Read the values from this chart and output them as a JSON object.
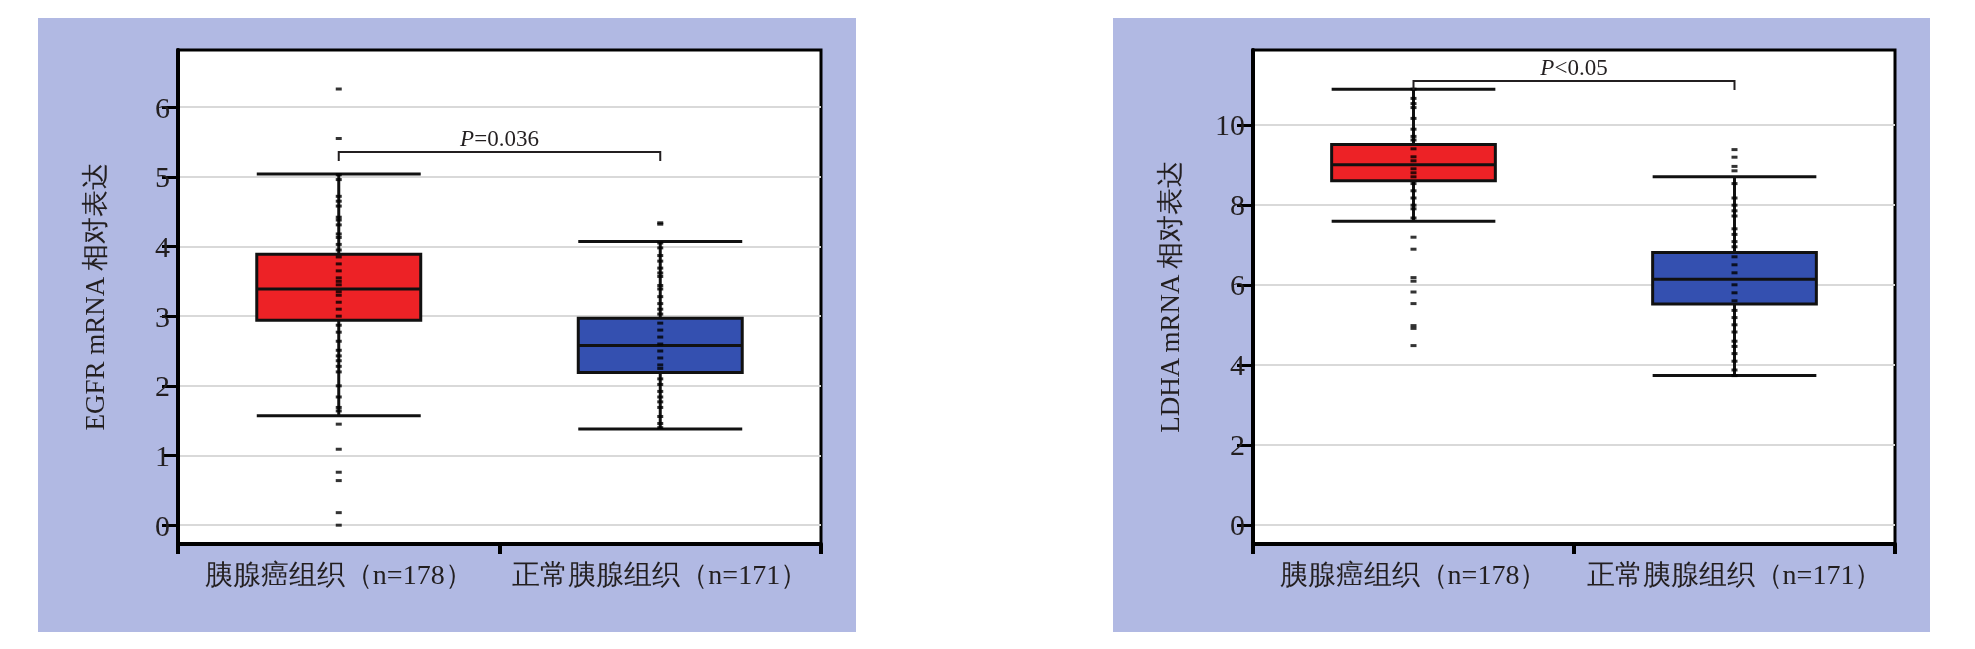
{
  "chart_data": [
    {
      "type": "box",
      "ylabel": "EGFR mRNA 相对表达",
      "categories": [
        "胰腺癌组织（n=178）",
        "正常胰腺组织（n=171）"
      ],
      "ylim": [
        -0.27,
        6.82
      ],
      "yticks": [
        0,
        1,
        2,
        3,
        4,
        5,
        6
      ],
      "grid": "y",
      "annotations": [
        "P=0.036"
      ],
      "series": [
        {
          "type": "box",
          "colors": [
            "#ed2226",
            "#3450b0"
          ],
          "boxes": [
            {
              "low": 1.57,
              "q1": 2.94,
              "median": 3.39,
              "q3": 3.89,
              "high": 5.04
            },
            {
              "low": 1.38,
              "q1": 2.19,
              "median": 2.58,
              "q3": 2.97,
              "high": 4.07
            }
          ]
        },
        {
          "type": "scatter",
          "color": "#000000",
          "marker": "square",
          "x": [
            "胰腺癌组织（n=178）",
            "胰腺癌组织（n=178）",
            "胰腺癌组织（n=178）",
            "胰腺癌组织（n=178）",
            "胰腺癌组织（n=178）",
            "胰腺癌组织（n=178）",
            "胰腺癌组织（n=178）",
            "胰腺癌组织（n=178）",
            "胰腺癌组织（n=178）",
            "胰腺癌组织（n=178）",
            "胰腺癌组织（n=178）",
            "胰腺癌组织（n=178）",
            "胰腺癌组织（n=178）",
            "胰腺癌组织（n=178）",
            "胰腺癌组织（n=178）",
            "胰腺癌组织（n=178）",
            "胰腺癌组织（n=178）",
            "胰腺癌组织（n=178）",
            "胰腺癌组织（n=178）",
            "胰腺癌组织（n=178）",
            "胰腺癌组织（n=178）",
            "胰腺癌组织（n=178）",
            "胰腺癌组织（n=178）",
            "胰腺癌组织（n=178）",
            "胰腺癌组织（n=178）",
            "胰腺癌组织（n=178）",
            "胰腺癌组织（n=178）",
            "胰腺癌组织（n=178）",
            "胰腺癌组织（n=178）",
            "胰腺癌组织（n=178）",
            "胰腺癌组织（n=178）",
            "胰腺癌组织（n=178）",
            "胰腺癌组织（n=178）",
            "胰腺癌组织（n=178）",
            "胰腺癌组织（n=178）",
            "胰腺癌组织（n=178）",
            "胰腺癌组织（n=178）",
            "胰腺癌组织（n=178）",
            "胰腺癌组织（n=178）",
            "胰腺癌组织（n=178）",
            "胰腺癌组织（n=178）",
            "胰腺癌组织（n=178）",
            "胰腺癌组织（n=178）"
          ],
          "values": [
            6.26,
            5.55,
            5.03,
            4.96,
            4.72,
            4.65,
            4.58,
            4.42,
            4.38,
            4.31,
            4.18,
            4.13,
            4.03,
            3.95,
            3.85,
            3.75,
            3.65,
            3.55,
            3.5,
            3.45,
            3.35,
            3.3,
            3.2,
            3.1,
            3.0,
            2.87,
            2.77,
            2.64,
            2.51,
            2.43,
            2.36,
            2.28,
            2.2,
            2.0,
            1.84,
            1.69,
            1.64,
            1.45,
            1.09,
            0.76,
            0.64,
            0.18,
            0
          ]
        },
        {
          "type": "scatter",
          "color": "#000000",
          "marker": "square",
          "x": [
            "正常胰腺组织（n=171）",
            "正常胰腺组织（n=171）",
            "正常胰腺组织（n=171）",
            "正常胰腺组织（n=171）",
            "正常胰腺组织（n=171）",
            "正常胰腺组织（n=171）",
            "正常胰腺组织（n=171）",
            "正常胰腺组织（n=171）",
            "正常胰腺组织（n=171）",
            "正常胰腺组织（n=171）",
            "正常胰腺组织（n=171）",
            "正常胰腺组织（n=171）",
            "正常胰腺组织（n=171）",
            "正常胰腺组织（n=171）",
            "正常胰腺组织（n=171）",
            "正常胰腺组织（n=171）",
            "正常胰腺组织（n=171）",
            "正常胰腺组织（n=171）",
            "正常胰腺组织（n=171）",
            "正常胰腺组织（n=171）",
            "正常胰腺组织（n=171）",
            "正常胰腺组织（n=171）",
            "正常胰腺组织（n=171）",
            "正常胰腺组织（n=171）",
            "正常胰腺组织（n=171）",
            "正常胰腺组织（n=171）",
            "正常胰腺组织（n=171）",
            "正常胰腺组织（n=171）",
            "正常胰腺组织（n=171）",
            "正常胰腺组织（n=171）",
            "正常胰腺组织（n=171）",
            "正常胰腺组织（n=171）"
          ],
          "values": [
            4.34,
            4.32,
            4.05,
            3.98,
            3.87,
            3.79,
            3.69,
            3.62,
            3.57,
            3.44,
            3.39,
            3.28,
            3.18,
            3.1,
            3.03,
            2.9,
            2.8,
            2.7,
            2.6,
            2.5,
            2.4,
            2.3,
            2.25,
            2.1,
            2.02,
            1.92,
            1.84,
            1.77,
            1.69,
            1.56,
            1.46,
            1.4
          ]
        }
      ]
    },
    {
      "type": "box",
      "ylabel": "LDHA mRNA 相对表达",
      "categories": [
        "胰腺癌组织（n=178）",
        "正常胰腺组织（n=171）"
      ],
      "ylim": [
        -0.48,
        11.87
      ],
      "yticks": [
        0,
        2,
        4,
        6,
        8,
        10
      ],
      "grid": "y",
      "annotations": [
        "P<0.05"
      ],
      "series": [
        {
          "type": "box",
          "colors": [
            "#ed2226",
            "#3450b0"
          ],
          "boxes": [
            {
              "low": 7.59,
              "q1": 8.6,
              "median": 9.0,
              "q3": 9.51,
              "high": 10.89
            },
            {
              "low": 3.73,
              "q1": 5.52,
              "median": 6.14,
              "q3": 6.81,
              "high": 8.7
            }
          ]
        },
        {
          "type": "scatter",
          "color": "#000000",
          "marker": "square",
          "x": [
            "胰腺癌组织（n=178）",
            "胰腺癌组织（n=178）",
            "胰腺癌组织（n=178）",
            "胰腺癌组织（n=178）",
            "胰腺癌组织（n=178）",
            "胰腺癌组织（n=178）",
            "胰腺癌组织（n=178）",
            "胰腺癌组织（n=178）",
            "胰腺癌组织（n=178）",
            "胰腺癌组织（n=178）",
            "胰腺癌组织（n=178）",
            "胰腺癌组织（n=178）",
            "胰腺癌组织（n=178）",
            "胰腺癌组织（n=178）",
            "胰腺癌组织（n=178）",
            "胰腺癌组织（n=178）",
            "胰腺癌组织（n=178）",
            "胰腺癌组织（n=178）",
            "胰腺癌组织（n=178）",
            "胰腺癌组织（n=178）",
            "胰腺癌组织（n=178）",
            "胰腺癌组织（n=178）",
            "胰腺癌组织（n=178）",
            "胰腺癌组织（n=178）",
            "胰腺癌组织（n=178）",
            "胰腺癌组织（n=178）",
            "胰腺癌组织（n=178）",
            "胰腺癌组织（n=178）",
            "胰腺癌组织（n=178）"
          ],
          "values": [
            10.89,
            10.66,
            10.53,
            10.43,
            10.16,
            9.89,
            9.71,
            9.62,
            9.4,
            9.2,
            9.1,
            8.9,
            8.8,
            8.7,
            8.53,
            8.35,
            8.17,
            7.99,
            7.9,
            7.67,
            7.19,
            6.89,
            6.18,
            6.09,
            5.82,
            5.53,
            4.98,
            4.91,
            4.48
          ]
        },
        {
          "type": "scatter",
          "color": "#000000",
          "marker": "square",
          "x": [
            "正常胰腺组织（n=171）",
            "正常胰腺组织（n=171）",
            "正常胰腺组织（n=171）",
            "正常胰腺组织（n=171）",
            "正常胰腺组织（n=171）",
            "正常胰腺组织（n=171）",
            "正常胰腺组织（n=171）",
            "正常胰腺组织（n=171）",
            "正常胰腺组织（n=171）",
            "正常胰腺组织（n=171）",
            "正常胰腺组织（n=171）",
            "正常胰腺组织（n=171）",
            "正常胰腺组织（n=171）",
            "正常胰腺组织（n=171）",
            "正常胰腺组织（n=171）",
            "正常胰腺组织（n=171）",
            "正常胰腺组织（n=171）",
            "正常胰腺组织（n=171）",
            "正常胰腺组织（n=171）",
            "正常胰腺组织（n=171）",
            "正常胰腺组织（n=171）",
            "正常胰腺组织（n=171）",
            "正常胰腺组织（n=171）",
            "正常胰腺组织（n=171）",
            "正常胰腺组织（n=171）",
            "正常胰腺组织（n=171）",
            "正常胰腺组织（n=171）",
            "正常胰腺组织（n=171）",
            "正常胰腺组织（n=171）"
          ],
          "values": [
            9.38,
            9.19,
            8.96,
            8.85,
            8.53,
            8.17,
            7.99,
            7.85,
            7.72,
            7.4,
            7.26,
            7.08,
            6.95,
            6.7,
            6.5,
            6.3,
            6.0,
            5.8,
            5.6,
            5.36,
            5.18,
            5.0,
            4.82,
            4.59,
            4.46,
            4.28,
            4.09,
            3.87,
            3.73
          ]
        }
      ]
    }
  ]
}
